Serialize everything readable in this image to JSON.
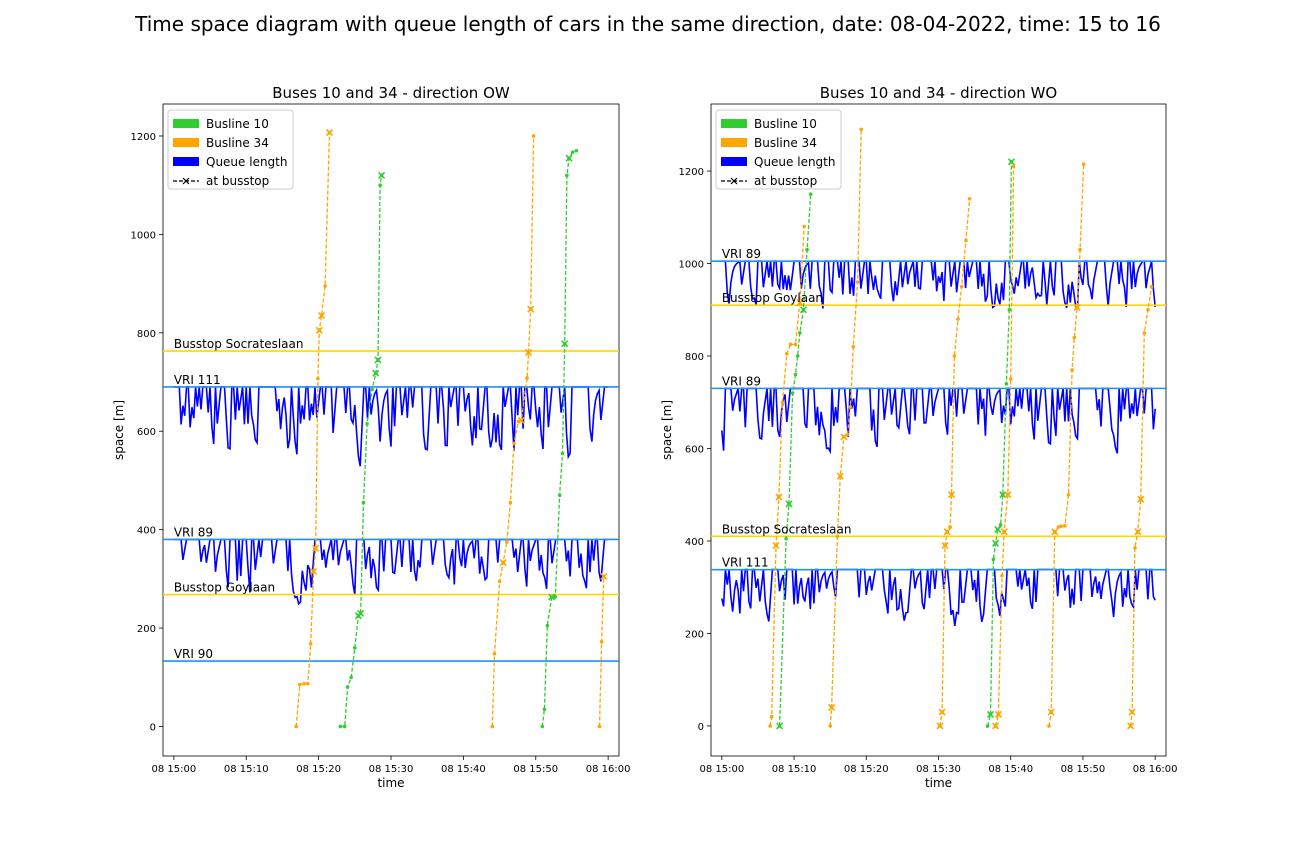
{
  "figure_title": "Time space diagram with queue length of cars in the same direction, date: 08-04-2022, time: 15 to 16",
  "colors": {
    "busline_10": "#32cd32",
    "busline_34": "#ffa500",
    "queue": "#0000ff",
    "vri_line": "#1e90ff",
    "busstop_line": "#ffd700"
  },
  "chart_data": [
    {
      "type": "line",
      "title": "Buses 10 and 34 - direction OW",
      "xlabel": "time",
      "ylabel": "space [m]",
      "x_unit": "minutes after 15:00 on 08-04-2022",
      "xlim": [
        -1.5,
        61.5
      ],
      "ylim": [
        -60,
        1265
      ],
      "x_ticks": [
        0,
        10,
        20,
        30,
        40,
        50,
        60
      ],
      "x_tick_labels": [
        "08 15:00",
        "08 15:10",
        "08 15:20",
        "08 15:30",
        "08 15:40",
        "08 15:50",
        "08 16:00"
      ],
      "y_ticks": [
        0,
        200,
        400,
        600,
        800,
        1000,
        1200
      ],
      "y_tick_labels": [
        "0",
        "200",
        "400",
        "600",
        "800",
        "1000",
        "1200"
      ],
      "legend": {
        "location": "upper-left",
        "entries": [
          "Busline 10",
          "Busline 34",
          "Queue length",
          "at busstop"
        ]
      },
      "reference_lines": [
        {
          "label": "Busstop Socrateslaan",
          "y": 763,
          "kind": "busstop"
        },
        {
          "label": "VRI 111",
          "y": 690,
          "kind": "vri"
        },
        {
          "label": "VRI 89",
          "y": 380,
          "kind": "vri"
        },
        {
          "label": "Busstop Goylaan",
          "y": 268,
          "kind": "busstop"
        },
        {
          "label": "VRI 90",
          "y": 133,
          "kind": "vri"
        }
      ],
      "queue_bands": [
        {
          "top": 690,
          "min": 495,
          "seed": 3
        },
        {
          "top": 380,
          "min": 212,
          "seed": 7
        }
      ],
      "bus_trips": [
        {
          "line": "34",
          "points": [
            [
              16.9,
              0
            ],
            [
              17.4,
              85
            ],
            [
              18.0,
              87
            ],
            [
              18.5,
              87
            ],
            [
              18.9,
              168
            ],
            [
              19.3,
              315
            ],
            [
              19.6,
              362
            ],
            [
              19.9,
              707
            ],
            [
              20.1,
              805
            ],
            [
              20.4,
              835
            ],
            [
              20.9,
              895
            ],
            [
              21.5,
              1207
            ]
          ],
          "stops": [
            [
              19.3,
              315
            ],
            [
              19.6,
              362
            ],
            [
              20.1,
              805
            ],
            [
              20.4,
              835
            ],
            [
              21.5,
              1207
            ]
          ]
        },
        {
          "line": "10",
          "points": [
            [
              23.0,
              0
            ],
            [
              23.6,
              0
            ],
            [
              24.0,
              80
            ],
            [
              24.5,
              100
            ],
            [
              25.0,
              160
            ],
            [
              25.5,
              225
            ],
            [
              25.8,
              230
            ],
            [
              26.2,
              455
            ],
            [
              26.7,
              615
            ],
            [
              27.4,
              685
            ],
            [
              27.9,
              718
            ],
            [
              28.2,
              745
            ],
            [
              28.5,
              1100
            ],
            [
              28.7,
              1120
            ]
          ],
          "stops": [
            [
              25.5,
              225
            ],
            [
              25.8,
              230
            ],
            [
              27.9,
              718
            ],
            [
              28.2,
              745
            ],
            [
              28.7,
              1120
            ]
          ]
        },
        {
          "line": "34",
          "points": [
            [
              44.0,
              0
            ],
            [
              44.3,
              148
            ],
            [
              45.0,
              295
            ],
            [
              45.5,
              333
            ],
            [
              46.0,
              375
            ],
            [
              46.5,
              455
            ],
            [
              47.0,
              575
            ],
            [
              47.6,
              620
            ],
            [
              48.0,
              622
            ],
            [
              48.8,
              708
            ],
            [
              49.0,
              760
            ],
            [
              49.3,
              848
            ],
            [
              49.7,
              1200
            ]
          ],
          "stops": [
            [
              45.5,
              333
            ],
            [
              48.0,
              622
            ],
            [
              49.0,
              760
            ],
            [
              49.3,
              848
            ]
          ]
        },
        {
          "line": "10",
          "points": [
            [
              50.9,
              0
            ],
            [
              51.2,
              35
            ],
            [
              51.6,
              205
            ],
            [
              52.2,
              263
            ],
            [
              52.7,
              263
            ],
            [
              53.3,
              470
            ],
            [
              53.7,
              555
            ],
            [
              54.0,
              778
            ],
            [
              54.3,
              1120
            ],
            [
              54.6,
              1155
            ],
            [
              55.1,
              1167
            ],
            [
              55.6,
              1170
            ]
          ],
          "stops": [
            [
              52.2,
              263
            ],
            [
              54.0,
              778
            ],
            [
              54.6,
              1155
            ]
          ]
        },
        {
          "line": "34",
          "points": [
            [
              58.8,
              0
            ],
            [
              59.1,
              172
            ],
            [
              59.4,
              305
            ]
          ],
          "stops": [
            [
              59.4,
              305
            ]
          ]
        }
      ]
    },
    {
      "type": "line",
      "title": "Buses 10 and 34 - direction WO",
      "xlabel": "time",
      "ylabel": "space [m]",
      "x_unit": "minutes after 15:00 on 08-04-2022",
      "xlim": [
        -1.5,
        61.5
      ],
      "ylim": [
        -65,
        1345
      ],
      "x_ticks": [
        0,
        10,
        20,
        30,
        40,
        50,
        60
      ],
      "x_tick_labels": [
        "08 15:00",
        "08 15:10",
        "08 15:20",
        "08 15:30",
        "08 15:40",
        "08 15:50",
        "08 16:00"
      ],
      "y_ticks": [
        0,
        200,
        400,
        600,
        800,
        1000,
        1200
      ],
      "y_tick_labels": [
        "0",
        "200",
        "400",
        "600",
        "800",
        "1000",
        "1200"
      ],
      "legend": {
        "location": "upper-left",
        "entries": [
          "Busline 10",
          "Busline 34",
          "Queue length",
          "at busstop"
        ]
      },
      "reference_lines": [
        {
          "label": "VRI 89",
          "y": 1005,
          "kind": "vri"
        },
        {
          "label": "Busstop Goylaan",
          "y": 910,
          "kind": "busstop"
        },
        {
          "label": "VRI 89",
          "y": 730,
          "kind": "vri"
        },
        {
          "label": "Busstop Socrateslaan",
          "y": 410,
          "kind": "busstop"
        },
        {
          "label": "VRI 111",
          "y": 338,
          "kind": "vri"
        }
      ],
      "queue_bands": [
        {
          "top": 1005,
          "min": 855,
          "seed": 11
        },
        {
          "top": 730,
          "min": 545,
          "seed": 17
        },
        {
          "top": 338,
          "min": 180,
          "seed": 23
        }
      ],
      "bus_trips": [
        {
          "line": "34",
          "points": [
            [
              6.7,
              0
            ],
            [
              6.9,
              20
            ],
            [
              7.5,
              390
            ],
            [
              7.9,
              495
            ],
            [
              8.4,
              700
            ],
            [
              9.0,
              805
            ],
            [
              9.5,
              825
            ],
            [
              10.2,
              825
            ],
            [
              10.8,
              915
            ],
            [
              11.4,
              1080
            ]
          ],
          "stops": [
            [
              7.5,
              390
            ],
            [
              7.9,
              495
            ],
            [
              10.8,
              915
            ]
          ]
        },
        {
          "line": "10",
          "points": [
            [
              8.0,
              0
            ],
            [
              8.9,
              405
            ],
            [
              9.3,
              480
            ],
            [
              9.8,
              720
            ],
            [
              10.2,
              760
            ],
            [
              10.5,
              800
            ],
            [
              10.8,
              850
            ],
            [
              11.3,
              900
            ],
            [
              11.8,
              1030
            ],
            [
              12.3,
              1150
            ]
          ],
          "stops": [
            [
              8.0,
              0
            ],
            [
              9.3,
              480
            ],
            [
              11.3,
              900
            ]
          ]
        },
        {
          "line": "34",
          "points": [
            [
              15.0,
              0
            ],
            [
              15.2,
              40
            ],
            [
              16.0,
              410
            ],
            [
              16.4,
              540
            ],
            [
              16.9,
              625
            ],
            [
              17.4,
              630
            ],
            [
              17.8,
              690
            ],
            [
              18.2,
              820
            ],
            [
              18.8,
              960
            ],
            [
              19.3,
              1290
            ]
          ],
          "stops": [
            [
              15.2,
              40
            ],
            [
              16.4,
              540
            ],
            [
              16.9,
              625
            ]
          ]
        },
        {
          "line": "34",
          "points": [
            [
              30.2,
              0
            ],
            [
              30.5,
              30
            ],
            [
              30.9,
              390
            ],
            [
              31.2,
              420
            ],
            [
              31.6,
              430
            ],
            [
              31.8,
              500
            ],
            [
              32.2,
              800
            ],
            [
              32.7,
              880
            ],
            [
              33.2,
              950
            ],
            [
              33.8,
              1050
            ],
            [
              34.3,
              1140
            ]
          ],
          "stops": [
            [
              30.2,
              0
            ],
            [
              30.5,
              30
            ],
            [
              30.9,
              390
            ],
            [
              31.2,
              420
            ],
            [
              31.8,
              500
            ]
          ]
        },
        {
          "line": "10",
          "points": [
            [
              36.8,
              0
            ],
            [
              37.2,
              25
            ],
            [
              37.6,
              360
            ],
            [
              37.9,
              395
            ],
            [
              38.2,
              425
            ],
            [
              38.6,
              435
            ],
            [
              38.9,
              500
            ],
            [
              39.4,
              740
            ],
            [
              39.8,
              900
            ],
            [
              40.1,
              1220
            ]
          ],
          "stops": [
            [
              37.2,
              25
            ],
            [
              37.9,
              395
            ],
            [
              38.2,
              425
            ],
            [
              38.9,
              500
            ],
            [
              40.1,
              1220
            ]
          ]
        },
        {
          "line": "34",
          "points": [
            [
              37.9,
              0
            ],
            [
              38.3,
              25
            ],
            [
              38.8,
              325
            ],
            [
              39.1,
              420
            ],
            [
              39.6,
              500
            ],
            [
              40.0,
              750
            ],
            [
              40.4,
              1210
            ]
          ],
          "stops": [
            [
              37.9,
              0
            ],
            [
              38.3,
              25
            ],
            [
              39.1,
              420
            ],
            [
              39.6,
              500
            ]
          ]
        },
        {
          "line": "34",
          "points": [
            [
              45.3,
              0
            ],
            [
              45.6,
              30
            ],
            [
              46.1,
              420
            ],
            [
              46.6,
              430
            ],
            [
              47.0,
              432
            ],
            [
              47.5,
              433
            ],
            [
              48.0,
              500
            ],
            [
              48.5,
              770
            ],
            [
              48.8,
              840
            ],
            [
              49.2,
              905
            ],
            [
              49.6,
              1030
            ],
            [
              50.1,
              1215
            ]
          ],
          "stops": [
            [
              45.6,
              30
            ],
            [
              46.1,
              420
            ],
            [
              49.2,
              905
            ]
          ]
        },
        {
          "line": "34",
          "points": [
            [
              56.6,
              0
            ],
            [
              56.8,
              30
            ],
            [
              57.2,
              385
            ],
            [
              57.6,
              420
            ],
            [
              58.0,
              490
            ],
            [
              58.5,
              850
            ],
            [
              59.0,
              900
            ],
            [
              59.5,
              950
            ]
          ],
          "stops": [
            [
              56.6,
              0
            ],
            [
              56.8,
              30
            ],
            [
              57.6,
              420
            ],
            [
              58.0,
              490
            ]
          ]
        }
      ]
    }
  ]
}
